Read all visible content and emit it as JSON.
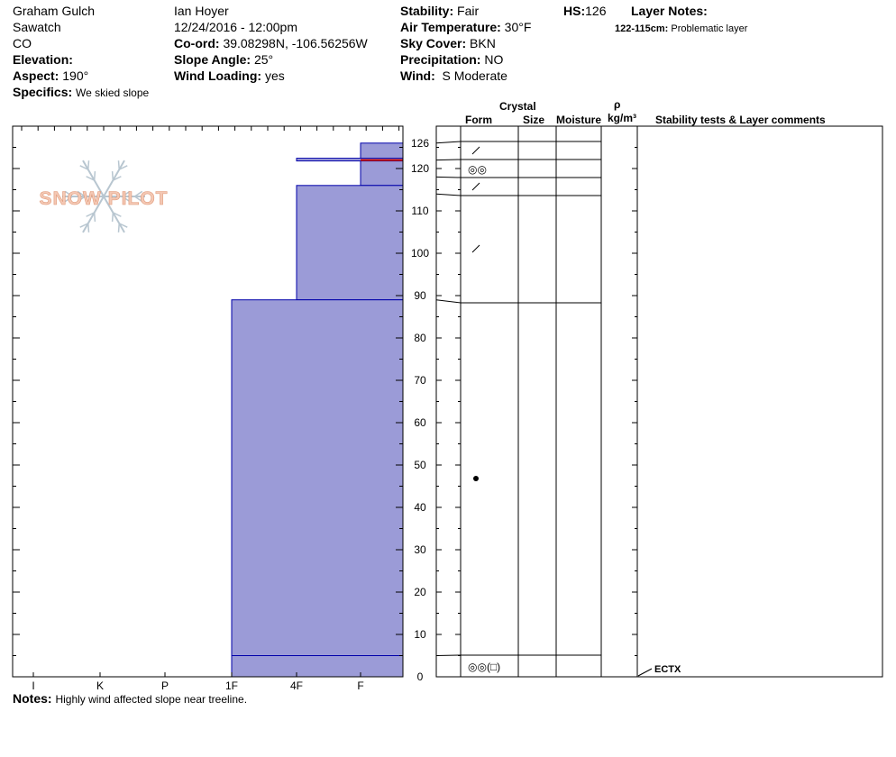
{
  "header": {
    "location": "Graham Gulch",
    "range": "Sawatch",
    "state": "CO",
    "elevation_label": "Elevation:",
    "aspect_label": "Aspect:",
    "aspect_value": "190°",
    "specifics_label": "Specifics:",
    "specifics_value": "We skied slope",
    "observer": "Ian Hoyer",
    "datetime": "12/24/2016 - 12:00pm",
    "coord_label": "Co-ord:",
    "coord_value": "39.08298N, -106.56256W",
    "slope_label": "Slope Angle:",
    "slope_value": "25°",
    "windload_label": "Wind Loading:",
    "windload_value": "yes",
    "stability_label": "Stability:",
    "stability_value": "Fair",
    "airtemp_label": "Air Temperature:",
    "airtemp_value": "30°F",
    "sky_label": "Sky Cover:",
    "sky_value": "BKN",
    "precip_label": "Precipitation:",
    "precip_value": "NO",
    "wind_label": "Wind:",
    "wind_value": "S Moderate",
    "hs_label": "HS:",
    "hs_value": "126",
    "layer_notes_label": "Layer Notes:",
    "layer_note_range": "122-115cm:",
    "layer_note_text": "Problematic layer"
  },
  "columns": {
    "crystal": "Crystal",
    "form": "Form",
    "size": "Size",
    "moisture": "Moisture",
    "rho": "ρ",
    "density_unit": "kg/m³",
    "comments": "Stability tests & Layer comments"
  },
  "logo_text": "SNOW PILOT",
  "notes_label": "Notes:",
  "notes_value": "Highly wind affected slope near treeline.",
  "stability_test": "ECTX",
  "colors": {
    "hardness_fill": "#9b9bd7",
    "hardness_stroke": "#0000aa",
    "problem_layer": "#cc0000"
  },
  "chart_data": {
    "type": "snow-profile",
    "height_axis": {
      "min": 0,
      "max": 130,
      "ticks": [
        0,
        10,
        20,
        30,
        40,
        50,
        60,
        70,
        80,
        90,
        100,
        110,
        120,
        126
      ],
      "unit": "cm"
    },
    "hardness_axis": {
      "labels": [
        "I",
        "K",
        "P",
        "1F",
        "4F",
        "F"
      ]
    },
    "layers": [
      {
        "top": 126,
        "bottom": 116,
        "hardness": "F"
      },
      {
        "top": 116,
        "bottom": 89,
        "hardness": "4F"
      },
      {
        "top": 89,
        "bottom": 0,
        "hardness": "1F"
      }
    ],
    "thin_layers": [
      {
        "height": 122,
        "hardness": "4F"
      }
    ],
    "problem_layer_height": 122,
    "boundaries": [
      126,
      122,
      118,
      114,
      89,
      5
    ],
    "crystal_forms": [
      {
        "height": 124,
        "form": "new-snow-slash"
      },
      {
        "height": 120,
        "form": "surface-hoar-pair"
      },
      {
        "height": 116,
        "form": "new-snow-slash"
      },
      {
        "height": 101,
        "form": "new-snow-slash"
      },
      {
        "height": 47,
        "form": "rounds-dot"
      },
      {
        "height": 2.5,
        "form": "surface-hoar-pair-facet"
      }
    ],
    "crystal_form_glyphs": {
      "surface-hoar-pair": "◎◎",
      "surface-hoar-pair-facet": "◎◎(□)"
    },
    "stability_tests": [
      {
        "height": 0,
        "result": "ECTX"
      }
    ]
  }
}
